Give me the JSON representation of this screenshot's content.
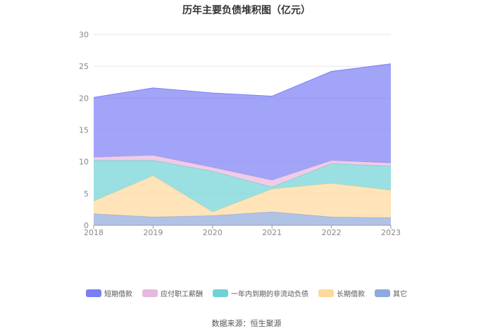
{
  "chart_data": {
    "type": "area",
    "stacked": true,
    "title": "历年主要负债堆积图（亿元）",
    "categories": [
      "2018",
      "2019",
      "2020",
      "2021",
      "2022",
      "2023"
    ],
    "ylim": [
      0,
      30
    ],
    "yticks": [
      "0",
      "5",
      "10",
      "15",
      "20",
      "25",
      "30"
    ],
    "grid": true,
    "legend_position": "bottom",
    "series": [
      {
        "name": "其它",
        "color": "#8eaadd",
        "values": [
          1.8,
          1.3,
          1.5,
          2.1,
          1.3,
          1.2
        ]
      },
      {
        "name": "长期借款",
        "color": "#fdd99a",
        "values": [
          2.0,
          6.5,
          0.6,
          3.6,
          5.3,
          4.3
        ]
      },
      {
        "name": "一年内到期的非流动负债",
        "color": "#6fd3d5",
        "values": [
          6.4,
          2.4,
          6.4,
          0.3,
          3.1,
          3.8
        ]
      },
      {
        "name": "应付职工薪酬",
        "color": "#e8b7dc",
        "values": [
          0.5,
          0.8,
          0.6,
          1.1,
          0.5,
          0.5
        ]
      },
      {
        "name": "短期借款",
        "color": "#7b7ff4",
        "values": [
          9.4,
          10.6,
          11.7,
          13.2,
          14.0,
          15.6
        ]
      }
    ]
  },
  "source": "数据来源：恒生聚源"
}
